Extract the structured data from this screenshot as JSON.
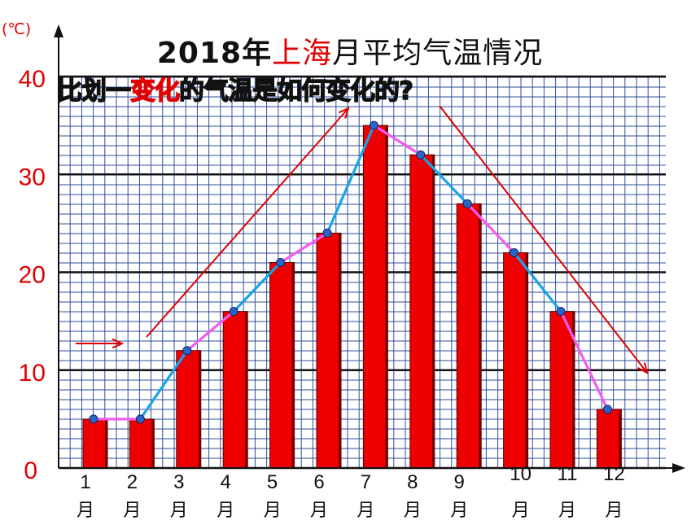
{
  "title": {
    "year": "2018年",
    "place": "上海",
    "rest": "月平均气温情况"
  },
  "overlay_text": {
    "before": "比划一",
    "highlight": "变化",
    "after": "的气温是如何变化的?"
  },
  "colors": {
    "bar": "#ee0000",
    "bar_edge": "#550000",
    "rising_segment": "#17a4e8",
    "alt_segment": "#f25cf0",
    "grid": "#2f4e9a",
    "trend_arrow": "#e00000",
    "axis_number": "#e00000",
    "point": "#2b63c6"
  },
  "chart_data": {
    "type": "bar",
    "title": "2018年上海月平均气温情况",
    "ylabel": "(℃)",
    "xlabel": "",
    "ylim": [
      0,
      40
    ],
    "yticks": [
      0,
      10,
      20,
      30,
      40
    ],
    "grid": true,
    "categories": [
      "1月",
      "2月",
      "3月",
      "4月",
      "5月",
      "6月",
      "7月",
      "8月",
      "9月",
      "10月",
      "11月",
      "12月"
    ],
    "category_numbers": [
      "1",
      "2",
      "3",
      "4",
      "5",
      "6",
      "7",
      "8",
      "9",
      "10",
      "11",
      "12"
    ],
    "month_char": "月",
    "values": [
      5,
      5,
      12,
      16,
      21,
      24,
      35,
      32,
      27,
      22,
      16,
      6
    ],
    "line_values": [
      5,
      5,
      12,
      16,
      21,
      24,
      35,
      32,
      27,
      22,
      16,
      6
    ],
    "line_segment_colors": [
      "alt",
      "rising",
      "alt",
      "rising",
      "alt",
      "rising",
      "alt",
      "rising",
      "alt",
      "rising",
      "alt"
    ]
  }
}
